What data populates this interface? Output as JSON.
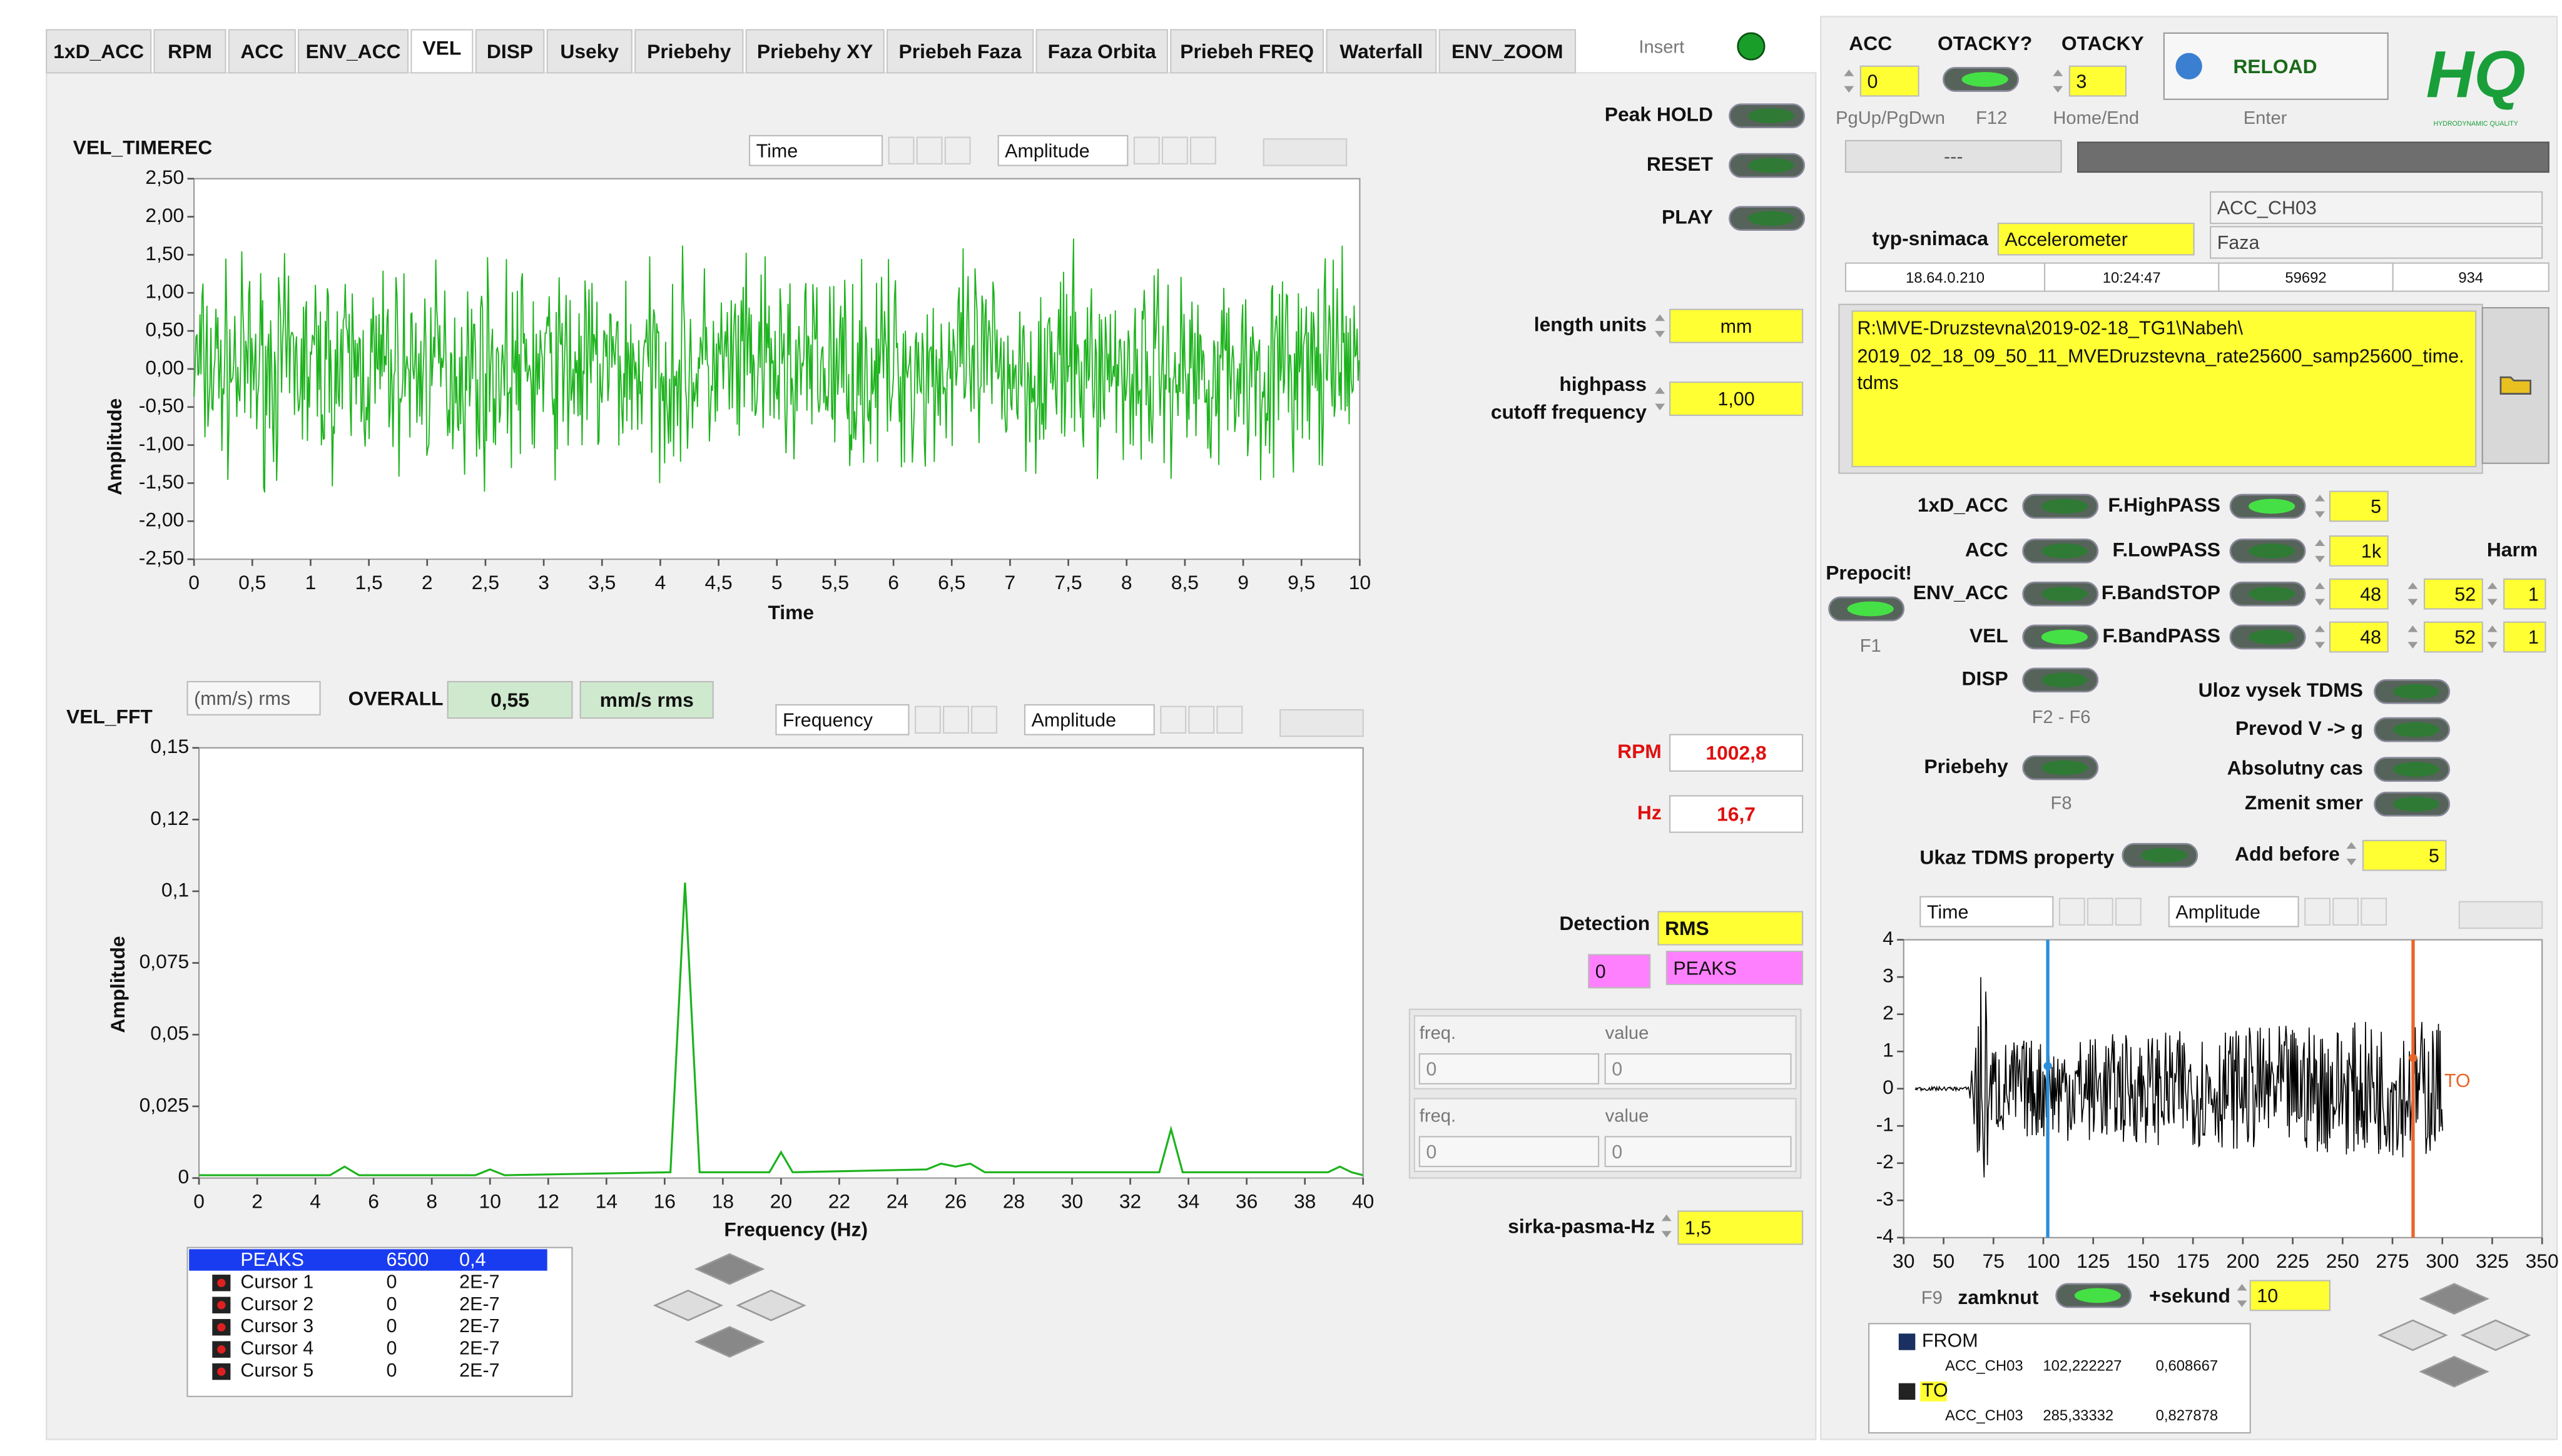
{
  "tabs": [
    "1xD_ACC",
    "RPM",
    "ACC",
    "ENV_ACC",
    "VEL",
    "DISP",
    "Useky",
    "Priebehy",
    "Priebehy XY",
    "Priebeh Faza",
    "Faza Orbita",
    "Priebeh FREQ",
    "Waterfall",
    "ENV_ZOOM"
  ],
  "insert_label": "Insert",
  "top": {
    "acc_label": "ACC",
    "acc_value": "0",
    "otacky_toggle_label": "OTACKY?",
    "otacky_label": "OTACKY",
    "otacky_value": "3",
    "hints": [
      "PgUp/PgDwn",
      "F12",
      "Home/End",
      "Enter"
    ],
    "reload": "RELOAD",
    "status": "---",
    "logo": "HQ",
    "logo_tagline": "HYDRODYNAMIC QUALITY"
  },
  "sensor": {
    "type_label": "typ-snimaca",
    "type_value": "Accelerometer",
    "channel": "ACC_CH03",
    "mode": "Faza",
    "info": [
      "18.64.0.210",
      "10:24:47",
      "59692",
      "934"
    ],
    "file_path": [
      "R:\\MVE-Druzstevna\\2019-02-18_TG1\\Nabeh\\",
      "2019_02_18_09_50_11_MVEDruzstevna_rate25600_samp25600_time.",
      "tdms"
    ]
  },
  "time_graph": {
    "title": "VEL_TIMEREC",
    "scale_x": "Time",
    "scale_y": "Amplitude",
    "x_axis_label": "Time",
    "y_axis_label": "Amplitude",
    "color": "#1db31d",
    "xlim": [
      0,
      10
    ],
    "xticks": [
      0,
      {
        "value": 0.5,
        "label": "0,5"
      },
      1,
      {
        "value": 1.5,
        "label": "1,5"
      },
      2,
      {
        "value": 2.5,
        "label": "2,5"
      },
      3,
      {
        "value": 3.5,
        "label": "3,5"
      },
      4,
      {
        "value": 4.5,
        "label": "4,5"
      },
      5,
      {
        "value": 5.5,
        "label": "5,5"
      },
      6,
      {
        "value": 6.5,
        "label": "6,5"
      },
      7,
      {
        "value": 7.5,
        "label": "7,5"
      },
      8,
      {
        "value": 8.5,
        "label": "8,5"
      },
      9,
      {
        "value": 9.5,
        "label": "9,5"
      },
      10
    ],
    "ylim": [
      -2.5,
      2.5
    ],
    "yticks": [
      {
        "value": 2.5,
        "label": "2,50"
      },
      {
        "value": 2,
        "label": "2,00"
      },
      {
        "value": 1.5,
        "label": "1,50"
      },
      {
        "value": 1,
        "label": "1,00"
      },
      {
        "value": 0.5,
        "label": "0,50"
      },
      {
        "value": 0,
        "label": "0,00"
      },
      {
        "value": -0.5,
        "label": "-0,50"
      },
      {
        "value": -1,
        "label": "-1,00"
      },
      {
        "value": -1.5,
        "label": "-1,50"
      },
      {
        "value": -2,
        "label": "-2,00"
      },
      {
        "value": -2.5,
        "label": "-2,50"
      }
    ]
  },
  "controls": {
    "peak_hold": "Peak HOLD",
    "reset": "RESET",
    "play": "PLAY",
    "length_units_label": "length units",
    "length_units": "mm",
    "highpass_label": [
      "highpass",
      "cutoff frequency"
    ],
    "highpass_value": "1,00",
    "rpm_label": "RPM",
    "rpm": "1002,8",
    "hz_label": "Hz",
    "hz": "16,7",
    "detection_label": "Detection",
    "detection": "RMS",
    "peaks_index": "0",
    "peaks": "PEAKS",
    "freq_table": [
      {
        "freq_label": "freq.",
        "value_label": "value",
        "freq": "0",
        "value": "0"
      },
      {
        "freq_label": "freq.",
        "value_label": "value",
        "freq": "0",
        "value": "0"
      }
    ],
    "bandwidth_label": "sirka-pasma-Hz",
    "bandwidth": "1,5"
  },
  "fft_graph": {
    "title": "VEL_FFT",
    "unit": "(mm/s) rms",
    "overall_label": "OVERALL",
    "overall": "0,55",
    "overall_unit": "mm/s rms",
    "scale_x": "Frequency",
    "scale_y": "Amplitude",
    "x_axis_label": "Frequency (Hz)",
    "y_axis_label": "Amplitude",
    "color": "#1db31d",
    "xlim": [
      0,
      40
    ],
    "xticks": [
      0,
      2,
      4,
      6,
      8,
      10,
      12,
      14,
      16,
      18,
      20,
      22,
      24,
      26,
      28,
      30,
      32,
      34,
      36,
      38,
      40
    ],
    "ylim": [
      0,
      0.15
    ],
    "yticks": [
      0,
      {
        "value": 0.025,
        "label": "0,025"
      },
      {
        "value": 0.05,
        "label": "0,05"
      },
      {
        "value": 0.075,
        "label": "0,075"
      },
      {
        "value": 0.1,
        "label": "0,1"
      },
      {
        "value": 0.125,
        "label": "0,12"
      },
      {
        "value": 0.15,
        "label": "0,15"
      }
    ],
    "x": [
      0,
      4.5,
      5,
      5.5,
      9.5,
      10,
      10.5,
      16.2,
      16.7,
      17.2,
      19.6,
      20,
      20.4,
      25,
      25.5,
      26,
      26.5,
      27,
      33,
      33.4,
      33.8,
      38.8,
      39.2,
      39.6,
      40
    ],
    "values": [
      0.001,
      0.001,
      0.004,
      0.001,
      0.001,
      0.003,
      0.001,
      0.002,
      0.103,
      0.002,
      0.002,
      0.009,
      0.002,
      0.003,
      0.005,
      0.004,
      0.005,
      0.002,
      0.002,
      0.017,
      0.002,
      0.002,
      0.004,
      0.002,
      0.001
    ]
  },
  "cursor_list": {
    "rows": [
      [
        "PEAKS",
        "6500",
        "0,4"
      ],
      [
        "Cursor 1",
        "0",
        "2E-7"
      ],
      [
        "Cursor 2",
        "0",
        "2E-7"
      ],
      [
        "Cursor 3",
        "0",
        "2E-7"
      ],
      [
        "Cursor 4",
        "0",
        "2E-7"
      ],
      [
        "Cursor 5",
        "0",
        "2E-7"
      ]
    ]
  },
  "processing": {
    "modes": [
      "1xD_ACC",
      "ACC",
      "ENV_ACC",
      "VEL",
      "DISP"
    ],
    "filters": [
      {
        "name": "F.HighPASS",
        "value": "5"
      },
      {
        "name": "F.LowPASS",
        "value": "1k"
      },
      {
        "name": "F.BandSTOP",
        "value": "48",
        "high": "52",
        "harm": "1"
      },
      {
        "name": "F.BandPASS",
        "value": "48",
        "high": "52",
        "harm": "1"
      }
    ],
    "harm_label": "Harm",
    "recalc_label": "Prepocit!",
    "recalc_key": "F1",
    "modes_key": "F2 - F6",
    "runs_label": "Priebehy",
    "runs_key": "F8",
    "options": [
      "Uloz vysek TDMS",
      "Prevod V -> g",
      "Absolutny cas",
      "Zmenit smer"
    ],
    "tdms_property": "Ukaz TDMS property",
    "add_before_label": "Add before",
    "add_before": "5"
  },
  "run_graph": {
    "scale_x": "Time",
    "scale_y": "Amplitude",
    "xlim": [
      30,
      350
    ],
    "xticks": [
      30,
      50,
      75,
      100,
      125,
      150,
      175,
      200,
      225,
      250,
      275,
      300,
      325,
      350
    ],
    "ylim": [
      -4,
      4
    ],
    "yticks": [
      4,
      3,
      2,
      1,
      0,
      -1,
      -2,
      -3,
      -4
    ],
    "cursor_tag": "TO",
    "lock_key": "F9",
    "lock_label": "zamknut",
    "seconds_label": "+sekund",
    "seconds": "10",
    "cursors": [
      {
        "name": "FROM",
        "channel": "ACC_CH03",
        "color": "#2a8fd8",
        "x": {
          "value": 102.222227,
          "label": "102,222227"
        },
        "y": {
          "value": 0.608667,
          "label": "0,608667"
        }
      },
      {
        "name": "TO",
        "channel": "ACC_CH03",
        "color": "#e8662a",
        "x": {
          "value": 285.33332,
          "label": "285,33332"
        },
        "y": {
          "value": 0.827878,
          "label": "0,827878"
        }
      }
    ]
  }
}
